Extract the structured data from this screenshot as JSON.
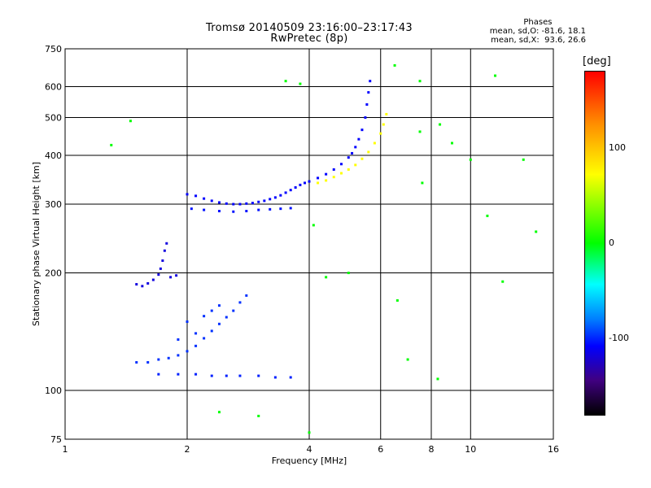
{
  "chart_data": {
    "type": "scatter",
    "title": "Tromsø 20140509 23:16:00–23:17:43",
    "subtitle": "RwPretec (8p)",
    "xlabel": "Frequency [MHz]",
    "ylabel": "Stationary phase Virtual Height [km]",
    "x_scale": "log",
    "y_scale": "log",
    "xlim": [
      1,
      16
    ],
    "ylim": [
      75,
      750
    ],
    "x_ticks": [
      1,
      2,
      4,
      6,
      8,
      10,
      16
    ],
    "x_tick_labels": [
      "1",
      "2",
      "4",
      "6",
      "8",
      "10",
      "16"
    ],
    "y_ticks": [
      75,
      100,
      200,
      300,
      400,
      500,
      600,
      750
    ],
    "y_tick_labels": [
      "75",
      "100",
      "200",
      "300",
      "400",
      "500",
      "600",
      "750"
    ],
    "grid": true,
    "colorbar": {
      "label": "[deg]",
      "range": [
        -180,
        180
      ],
      "ticks": [
        100,
        0,
        -100
      ],
      "tick_labels": [
        "100",
        "0",
        "-100"
      ]
    },
    "phase_stats": {
      "header": "Phases",
      "line1": "mean, sd,O: -81.6, 18.1",
      "line2": "mean, sd,X:  93.6, 26.6"
    },
    "series": [
      {
        "trace": "F-layer O-mode trace",
        "phase": -100,
        "points": [
          [
            2.0,
            318
          ],
          [
            2.1,
            315
          ],
          [
            2.2,
            310
          ],
          [
            2.3,
            306
          ],
          [
            2.4,
            303
          ],
          [
            2.5,
            301
          ],
          [
            2.6,
            300
          ],
          [
            2.7,
            300
          ],
          [
            2.8,
            301
          ],
          [
            2.9,
            302
          ],
          [
            3.0,
            304
          ],
          [
            3.1,
            306
          ],
          [
            3.2,
            309
          ],
          [
            3.3,
            312
          ],
          [
            3.4,
            316
          ],
          [
            3.5,
            321
          ],
          [
            3.6,
            326
          ],
          [
            3.7,
            331
          ],
          [
            3.8,
            336
          ],
          [
            3.9,
            340
          ],
          [
            4.0,
            343
          ],
          [
            4.2,
            350
          ],
          [
            4.4,
            358
          ],
          [
            4.6,
            368
          ],
          [
            4.8,
            380
          ],
          [
            5.0,
            395
          ],
          [
            5.1,
            405
          ],
          [
            5.2,
            420
          ],
          [
            5.3,
            440
          ],
          [
            5.4,
            465
          ],
          [
            5.5,
            500
          ],
          [
            5.55,
            540
          ],
          [
            5.6,
            580
          ],
          [
            5.65,
            620
          ]
        ]
      },
      {
        "trace": "F-layer X-mode trace",
        "phase": 100,
        "points": [
          [
            4.2,
            340
          ],
          [
            4.4,
            345
          ],
          [
            4.6,
            352
          ],
          [
            4.8,
            360
          ],
          [
            5.0,
            368
          ],
          [
            5.2,
            378
          ],
          [
            5.4,
            392
          ],
          [
            5.6,
            408
          ],
          [
            5.8,
            430
          ],
          [
            6.0,
            455
          ],
          [
            6.1,
            480
          ],
          [
            6.2,
            510
          ]
        ]
      },
      {
        "trace": "secondary trace near 290 km",
        "phase": -95,
        "points": [
          [
            2.05,
            292
          ],
          [
            2.2,
            290
          ],
          [
            2.4,
            288
          ],
          [
            2.6,
            287
          ],
          [
            2.8,
            288
          ],
          [
            3.0,
            290
          ],
          [
            3.2,
            291
          ],
          [
            3.4,
            292
          ],
          [
            3.6,
            293
          ]
        ]
      },
      {
        "trace": "E-layer trace",
        "phase": -110,
        "points": [
          [
            1.5,
            187
          ],
          [
            1.55,
            185
          ],
          [
            1.6,
            188
          ],
          [
            1.65,
            192
          ],
          [
            1.7,
            198
          ],
          [
            1.72,
            205
          ],
          [
            1.74,
            215
          ],
          [
            1.76,
            228
          ],
          [
            1.78,
            238
          ],
          [
            1.82,
            195
          ],
          [
            1.88,
            197
          ]
        ]
      },
      {
        "trace": "sporadic cluster 110-180 km",
        "phase": -85,
        "points": [
          [
            1.5,
            118
          ],
          [
            1.6,
            118
          ],
          [
            1.7,
            120
          ],
          [
            1.8,
            121
          ],
          [
            1.9,
            123
          ],
          [
            2.0,
            126
          ],
          [
            2.1,
            130
          ],
          [
            2.2,
            136
          ],
          [
            2.3,
            142
          ],
          [
            2.4,
            148
          ],
          [
            2.5,
            154
          ],
          [
            2.6,
            160
          ],
          [
            2.7,
            168
          ],
          [
            2.8,
            175
          ],
          [
            2.2,
            155
          ],
          [
            2.3,
            160
          ],
          [
            2.4,
            165
          ],
          [
            2.1,
            140
          ],
          [
            2.0,
            150
          ],
          [
            1.9,
            135
          ]
        ]
      },
      {
        "trace": "sporadic trace near 110 km",
        "phase": -90,
        "points": [
          [
            1.7,
            110
          ],
          [
            1.9,
            110
          ],
          [
            2.1,
            110
          ],
          [
            2.3,
            109
          ],
          [
            2.5,
            109
          ],
          [
            2.7,
            109
          ],
          [
            3.0,
            109
          ],
          [
            3.3,
            108
          ],
          [
            3.6,
            108
          ]
        ]
      },
      {
        "trace": "scattered echoes",
        "phase": 0,
        "points": [
          [
            1.3,
            425
          ],
          [
            1.45,
            490
          ],
          [
            3.5,
            620
          ],
          [
            3.8,
            610
          ],
          [
            4.1,
            265
          ],
          [
            4.4,
            195
          ],
          [
            5.0,
            200
          ],
          [
            6.5,
            680
          ],
          [
            7.5,
            620
          ],
          [
            7.5,
            460
          ],
          [
            7.6,
            340
          ],
          [
            8.4,
            480
          ],
          [
            9.0,
            430
          ],
          [
            10.0,
            390
          ],
          [
            11.0,
            280
          ],
          [
            11.5,
            640
          ],
          [
            12.0,
            190
          ],
          [
            13.5,
            390
          ],
          [
            14.5,
            255
          ],
          [
            6.6,
            170
          ],
          [
            7.0,
            120
          ],
          [
            8.3,
            107
          ],
          [
            4.0,
            78
          ],
          [
            2.4,
            88
          ],
          [
            3.0,
            86
          ]
        ]
      }
    ]
  }
}
